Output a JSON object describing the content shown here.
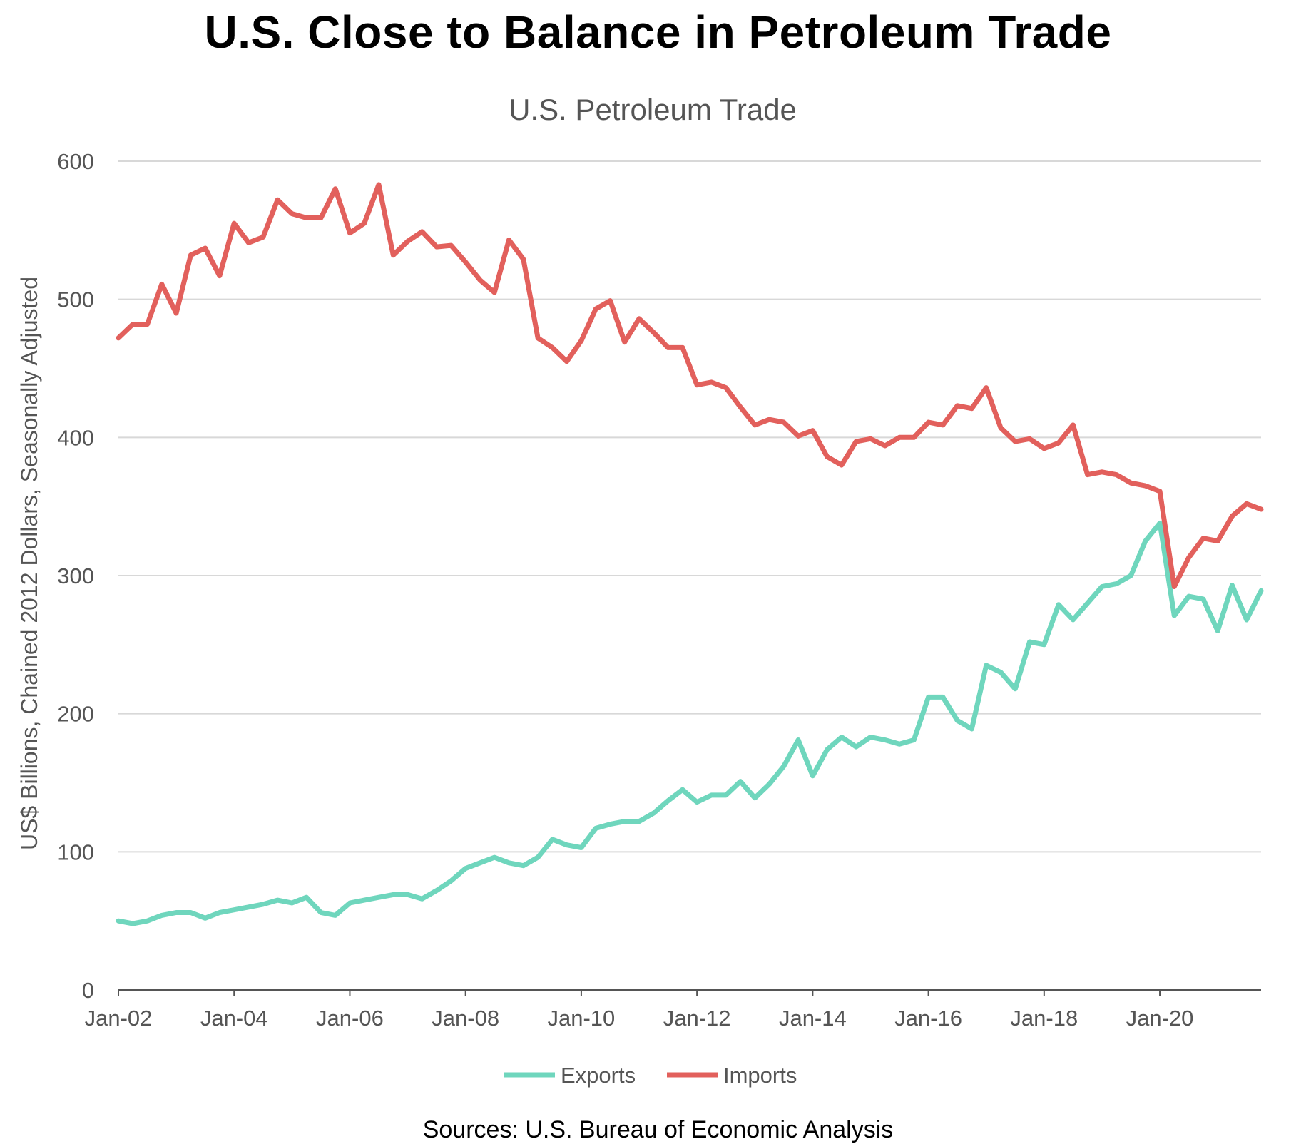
{
  "headline": "U.S. Close to Balance in Petroleum Trade",
  "source": "Sources: U.S. Bureau of Economic Analysis",
  "colors": {
    "exports": "#6fd6bd",
    "imports": "#e2605c",
    "grid": "#d8d8d8",
    "axis": "#555555",
    "text": "#555555"
  },
  "chart_data": {
    "type": "line",
    "title": "U.S. Petroleum Trade",
    "xlabel": "",
    "ylabel": "US$ Billions, Chained 2012 Dollars, Seasonally Adjusted",
    "ylim": [
      0,
      600
    ],
    "y_ticks": [
      0,
      100,
      200,
      300,
      400,
      500,
      600
    ],
    "x_range": [
      "2002-01",
      "2021-10"
    ],
    "x_tick_labels": [
      "Jan-02",
      "Jan-04",
      "Jan-06",
      "Jan-08",
      "Jan-10",
      "Jan-12",
      "Jan-14",
      "Jan-16",
      "Jan-18",
      "Jan-20"
    ],
    "x_tick_dates": [
      "2002-01",
      "2004-01",
      "2006-01",
      "2008-01",
      "2010-01",
      "2012-01",
      "2014-01",
      "2016-01",
      "2018-01",
      "2020-01"
    ],
    "grid": true,
    "legend_position": "bottom-center",
    "x": [
      "2002-01",
      "2002-04",
      "2002-07",
      "2002-10",
      "2003-01",
      "2003-04",
      "2003-07",
      "2003-10",
      "2004-01",
      "2004-04",
      "2004-07",
      "2004-10",
      "2005-01",
      "2005-04",
      "2005-07",
      "2005-10",
      "2006-01",
      "2006-04",
      "2006-07",
      "2006-10",
      "2007-01",
      "2007-04",
      "2007-07",
      "2007-10",
      "2008-01",
      "2008-04",
      "2008-07",
      "2008-10",
      "2009-01",
      "2009-04",
      "2009-07",
      "2009-10",
      "2010-01",
      "2010-04",
      "2010-07",
      "2010-10",
      "2011-01",
      "2011-04",
      "2011-07",
      "2011-10",
      "2012-01",
      "2012-04",
      "2012-07",
      "2012-10",
      "2013-01",
      "2013-04",
      "2013-07",
      "2013-10",
      "2014-01",
      "2014-04",
      "2014-07",
      "2014-10",
      "2015-01",
      "2015-04",
      "2015-07",
      "2015-10",
      "2016-01",
      "2016-04",
      "2016-07",
      "2016-10",
      "2017-01",
      "2017-04",
      "2017-07",
      "2017-10",
      "2018-01",
      "2018-04",
      "2018-07",
      "2018-10",
      "2019-01",
      "2019-04",
      "2019-07",
      "2019-10",
      "2020-01",
      "2020-04",
      "2020-07",
      "2020-10",
      "2021-01",
      "2021-04",
      "2021-07",
      "2021-10"
    ],
    "series": [
      {
        "name": "Exports",
        "values": [
          50,
          48,
          50,
          54,
          56,
          56,
          52,
          56,
          58,
          60,
          62,
          65,
          63,
          67,
          56,
          54,
          63,
          65,
          67,
          69,
          69,
          66,
          72,
          79,
          88,
          92,
          96,
          92,
          90,
          96,
          109,
          105,
          103,
          117,
          120,
          122,
          122,
          128,
          137,
          145,
          136,
          141,
          141,
          151,
          139,
          149,
          162,
          181,
          155,
          174,
          183,
          176,
          183,
          181,
          178,
          181,
          212,
          212,
          195,
          189,
          235,
          230,
          218,
          252,
          250,
          279,
          268,
          280,
          292,
          294,
          300,
          325,
          338,
          271,
          285,
          283,
          260,
          293,
          268,
          289
        ]
      },
      {
        "name": "Imports",
        "values": [
          472,
          482,
          482,
          511,
          490,
          532,
          537,
          517,
          555,
          541,
          545,
          572,
          562,
          559,
          559,
          580,
          548,
          555,
          583,
          532,
          542,
          549,
          538,
          539,
          527,
          514,
          505,
          543,
          529,
          472,
          465,
          455,
          470,
          493,
          499,
          469,
          486,
          476,
          465,
          465,
          438,
          440,
          436,
          422,
          409,
          413,
          411,
          401,
          405,
          386,
          380,
          397,
          399,
          394,
          400,
          400,
          411,
          409,
          423,
          421,
          436,
          407,
          397,
          399,
          392,
          396,
          409,
          373,
          375,
          373,
          367,
          365,
          361,
          292,
          313,
          327,
          325,
          343,
          352,
          348
        ]
      }
    ]
  }
}
